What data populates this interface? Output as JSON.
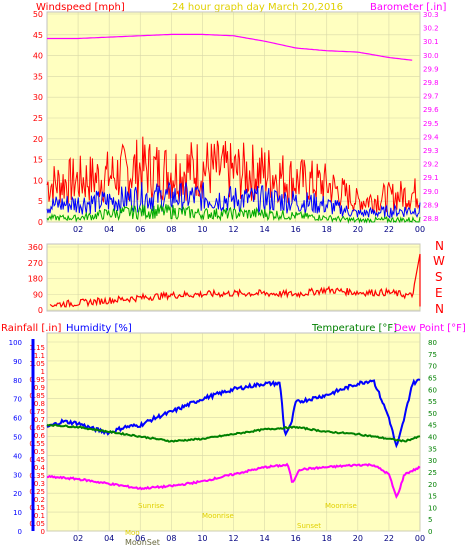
{
  "header": {
    "left_label": "Windspeed [mph]",
    "title": "24 hour graph day   March 20,2016",
    "right_label": "Barometer [.in]"
  },
  "colors": {
    "panel_bg": "#ffffc0",
    "grid": "#d8d8a8",
    "frame": "#c0c0c0",
    "barometer": "#ff00ff",
    "gust": "#ff0000",
    "wind": "#0000ff",
    "wind_low": "#00aa00",
    "direction": "#ff0000",
    "humidity": "#0000ff",
    "temperature": "#008000",
    "dewpoint": "#ff00ff",
    "title": "#e0d000",
    "label_red": "#ff0000"
  },
  "x_ticks": [
    "02",
    "04",
    "06",
    "08",
    "10",
    "12",
    "14",
    "16",
    "18",
    "20",
    "22",
    "00"
  ],
  "compass": [
    "N",
    "W",
    "S",
    "E",
    "N"
  ],
  "bottom_labels": {
    "rainfall": "Rainfall [.in]",
    "humidity": "Humidity [%]",
    "temperature": "Temperature [°F]",
    "dewpoint": "Dew Point [°F]",
    "moonset": "MoonSet",
    "moonset_short": "Moo",
    "sunrise": "Sunrise",
    "moonset2": "Moonset",
    "sunset": "Sunset",
    "moonrise": "Moonrise",
    "ph1": "Moonrise",
    "ph2": "Sunset"
  },
  "chart_data": [
    {
      "type": "line",
      "name": "wind-barometer",
      "x_ticks": [
        "02",
        "04",
        "06",
        "08",
        "10",
        "12",
        "14",
        "16",
        "18",
        "20",
        "22",
        "00"
      ],
      "left_axis": {
        "label": "Windspeed [mph]",
        "ticks": [
          0,
          5,
          10,
          15,
          20,
          25,
          30,
          35,
          40,
          45,
          50
        ]
      },
      "right_axis": {
        "label": "Barometer [.in]",
        "ticks": [
          28.8,
          28.9,
          29.0,
          29.1,
          29.2,
          29.3,
          29.4,
          29.5,
          29.6,
          29.7,
          29.8,
          29.9,
          30.0,
          30.1,
          30.2,
          30.3
        ]
      },
      "series": [
        {
          "key": "barometer",
          "hours": [
            0,
            2,
            4,
            6,
            8,
            10,
            12,
            14,
            16,
            18,
            20,
            22,
            23.5
          ],
          "values": [
            30.12,
            30.12,
            30.13,
            30.14,
            30.15,
            30.15,
            30.14,
            30.1,
            30.05,
            30.03,
            30.02,
            29.98,
            29.96
          ]
        },
        {
          "key": "gust",
          "hours": [
            0,
            2,
            4,
            6,
            8,
            10,
            12,
            14,
            16,
            18,
            20,
            22,
            24
          ],
          "values": [
            9,
            10,
            11,
            13,
            12,
            13,
            12,
            12,
            10,
            9,
            5,
            6,
            7
          ]
        },
        {
          "key": "wind",
          "hours": [
            0,
            2,
            4,
            6,
            8,
            10,
            12,
            14,
            16,
            18,
            20,
            22,
            24
          ],
          "values": [
            4,
            4.5,
            5,
            6,
            6,
            6,
            5.5,
            5.5,
            5,
            4,
            2,
            2.5,
            3
          ]
        },
        {
          "key": "wind_low",
          "hours": [
            0,
            2,
            4,
            6,
            8,
            10,
            12,
            14,
            16,
            18,
            20,
            22,
            24
          ],
          "values": [
            1,
            1,
            2,
            2.5,
            2.5,
            2,
            2,
            2,
            1.5,
            1,
            0.3,
            0.5,
            0.5
          ]
        }
      ]
    },
    {
      "type": "line",
      "name": "wind-direction",
      "left_axis": {
        "ticks": [
          0,
          90,
          180,
          270,
          360
        ]
      },
      "series": [
        {
          "key": "direction",
          "hours": [
            0,
            2,
            4,
            6,
            8,
            10,
            12,
            14,
            16,
            18,
            20,
            22,
            23.5,
            24
          ],
          "values": [
            30,
            40,
            55,
            70,
            85,
            90,
            95,
            95,
            90,
            115,
            100,
            100,
            80,
            320
          ]
        }
      ]
    },
    {
      "type": "line",
      "name": "temp-humidity",
      "rain_axis": {
        "label": "Rainfall [.in]",
        "ticks": [
          0,
          0.05,
          0.1,
          0.15,
          0.2,
          0.25,
          0.3,
          0.35,
          0.4,
          0.45,
          0.5,
          0.55,
          0.6,
          0.65,
          0.7,
          0.75,
          0.8,
          0.85,
          0.9,
          0.95,
          1,
          1.05,
          1.1,
          1.15
        ]
      },
      "humidity_axis": {
        "label": "Humidity [%]",
        "ticks": [
          0,
          10,
          20,
          30,
          40,
          50,
          60,
          70,
          80,
          90,
          100
        ]
      },
      "temp_axis": {
        "label": "Temperature [°F]",
        "ticks": [
          0,
          5,
          10,
          15,
          20,
          25,
          30,
          35,
          40,
          45,
          50,
          55,
          60,
          65,
          70,
          75,
          80
        ]
      },
      "series": [
        {
          "key": "humidity",
          "hours": [
            0,
            1,
            2,
            3,
            4,
            5,
            6,
            7,
            8,
            10,
            12,
            14,
            15,
            15.3,
            15.7,
            16,
            18,
            20,
            21,
            22,
            22.5,
            23,
            23.5,
            24
          ],
          "values": [
            55,
            58,
            57,
            54,
            52,
            55,
            56,
            60,
            63,
            70,
            75,
            78,
            78,
            51,
            56,
            68,
            72,
            78,
            80,
            60,
            44,
            60,
            78,
            80
          ]
        },
        {
          "key": "temperature",
          "hours": [
            0,
            2,
            4,
            6,
            8,
            10,
            12,
            14,
            16,
            18,
            20,
            22,
            23,
            24
          ],
          "values": [
            45,
            44,
            42,
            40,
            38,
            39,
            41,
            43,
            44,
            42,
            41,
            39,
            38,
            40
          ]
        },
        {
          "key": "dewpoint",
          "hours": [
            0,
            2,
            4,
            6,
            8,
            10,
            12,
            14,
            15.5,
            15.8,
            16.2,
            18,
            20,
            21,
            22,
            22.5,
            23,
            24
          ],
          "values": [
            23,
            22,
            20,
            18,
            19,
            21,
            24,
            27,
            28,
            20,
            26,
            27,
            28,
            28,
            24,
            14,
            24,
            27
          ]
        }
      ]
    }
  ]
}
